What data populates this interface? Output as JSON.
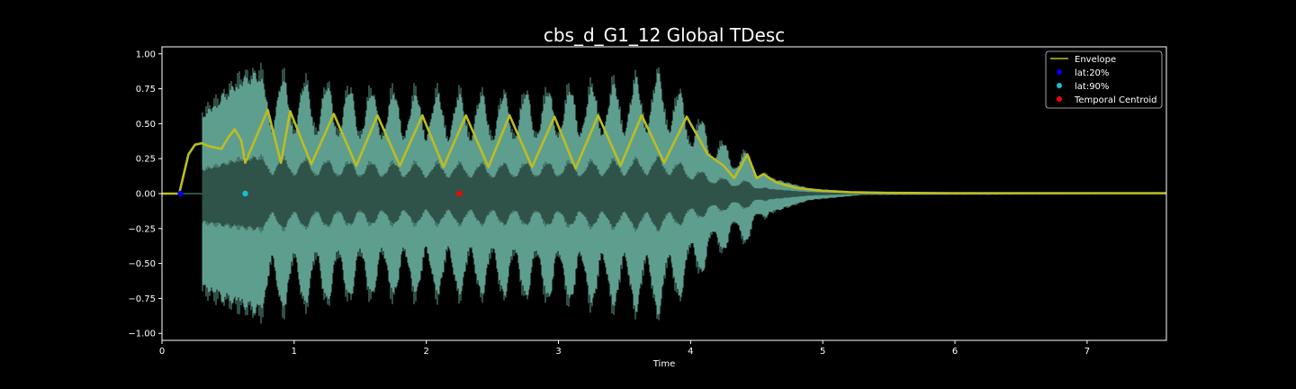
{
  "chart_data": {
    "type": "line",
    "title": "cbs_d_G1_12 Global TDesc",
    "xlabel": "Time",
    "ylabel": "",
    "xlim": [
      0,
      7.6
    ],
    "ylim": [
      -1.05,
      1.05
    ],
    "xticks": [
      0,
      1,
      2,
      3,
      4,
      5,
      6,
      7
    ],
    "xtick_labels": [
      "0",
      "1",
      "2",
      "3",
      "4",
      "5",
      "6",
      "7"
    ],
    "yticks": [
      1.0,
      0.75,
      0.5,
      0.25,
      0.0,
      -0.25,
      -0.5,
      -0.75,
      -1.0
    ],
    "ytick_labels": [
      "1.00",
      "0.75",
      "0.50",
      "0.25",
      "0.00",
      "−0.25",
      "−0.50",
      "−0.75",
      "−1.00"
    ],
    "grid": false,
    "legend_position": "top-right",
    "waveform": {
      "color_fill": "#5e9e8e",
      "color_core": "#2f5249",
      "oscillation_start": 0.75,
      "oscillation_period": 0.1667,
      "peaks": [
        {
          "t": 0.3,
          "max": 0.62,
          "min": -0.75
        },
        {
          "t": 0.45,
          "max": 0.75,
          "min": -0.82
        },
        {
          "t": 0.6,
          "max": 0.9,
          "min": -0.88
        },
        {
          "t": 0.8,
          "max": 0.95,
          "min": -0.95
        },
        {
          "t": 1.0,
          "max": 0.9,
          "min": -0.9
        },
        {
          "t": 1.5,
          "max": 0.82,
          "min": -0.82
        },
        {
          "t": 2.0,
          "max": 0.8,
          "min": -0.8
        },
        {
          "t": 2.5,
          "max": 0.78,
          "min": -0.8
        },
        {
          "t": 3.0,
          "max": 0.82,
          "min": -0.84
        },
        {
          "t": 3.5,
          "max": 0.88,
          "min": -0.9
        },
        {
          "t": 3.8,
          "max": 0.95,
          "min": -0.95
        },
        {
          "t": 4.1,
          "max": 0.55,
          "min": -0.6
        },
        {
          "t": 4.3,
          "max": 0.35,
          "min": -0.4
        },
        {
          "t": 4.43,
          "max": 0.33,
          "min": -0.38
        },
        {
          "t": 4.6,
          "max": 0.12,
          "min": -0.15
        },
        {
          "t": 4.9,
          "max": 0.04,
          "min": -0.05
        },
        {
          "t": 5.3,
          "max": 0.01,
          "min": -0.01
        },
        {
          "t": 7.6,
          "max": 0.005,
          "min": -0.005
        }
      ]
    },
    "series": [
      {
        "name": "Envelope",
        "color": "#bcbd22",
        "x": [
          0,
          0.13,
          0.16,
          0.2,
          0.25,
          0.3,
          0.35,
          0.4,
          0.45,
          0.5,
          0.55,
          0.6,
          0.63,
          0.8,
          0.9,
          0.97,
          1.13,
          1.3,
          1.47,
          1.63,
          1.8,
          1.97,
          2.13,
          2.3,
          2.47,
          2.63,
          2.8,
          2.97,
          3.13,
          3.3,
          3.47,
          3.63,
          3.8,
          3.97,
          4.13,
          4.25,
          4.33,
          4.43,
          4.5,
          4.55,
          4.65,
          4.8,
          5.0,
          5.2,
          5.5,
          6.0,
          6.5,
          7.0,
          7.6
        ],
        "y": [
          0.0,
          0.0,
          0.12,
          0.28,
          0.35,
          0.36,
          0.34,
          0.33,
          0.32,
          0.4,
          0.46,
          0.38,
          0.22,
          0.6,
          0.22,
          0.59,
          0.21,
          0.57,
          0.2,
          0.56,
          0.2,
          0.56,
          0.19,
          0.56,
          0.19,
          0.56,
          0.19,
          0.55,
          0.18,
          0.56,
          0.2,
          0.56,
          0.22,
          0.55,
          0.28,
          0.2,
          0.11,
          0.28,
          0.11,
          0.14,
          0.08,
          0.04,
          0.02,
          0.01,
          0.005,
          0.003,
          0.003,
          0.003,
          0.003
        ]
      }
    ],
    "points": [
      {
        "name": "lat:20%",
        "x": 0.14,
        "y": 0.0,
        "color": "#0000ff"
      },
      {
        "name": "lat:90%",
        "x": 0.63,
        "y": 0.0,
        "color": "#17becf"
      },
      {
        "name": "Temporal Centroid",
        "x": 2.25,
        "y": 0.0,
        "color": "#ff0000"
      }
    ]
  }
}
